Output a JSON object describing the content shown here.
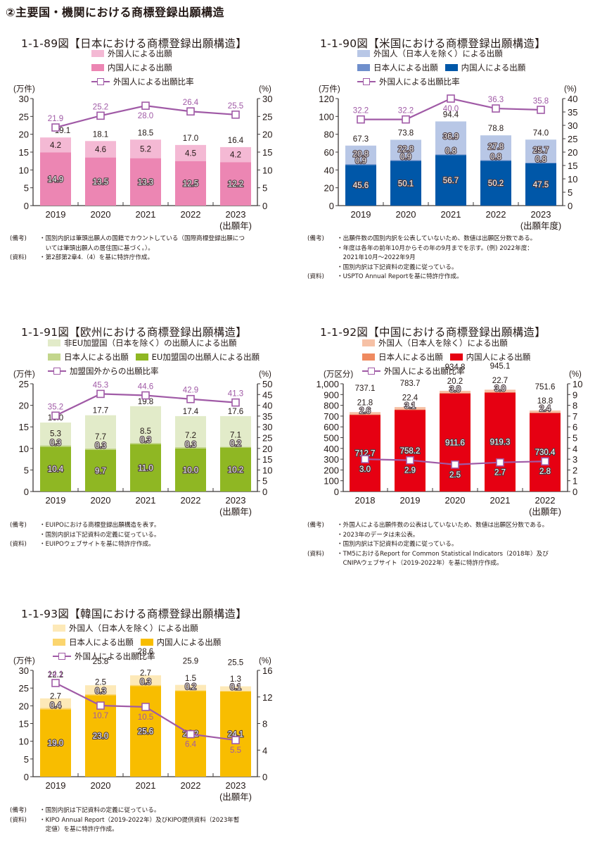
{
  "section_title": "②主要国・機関における商標登録出願構造",
  "chart_data": [
    {
      "id": "jp",
      "type": "bar",
      "stacked": true,
      "title": "1-1-89図【日本における商標登録出願構造】",
      "legend": [
        [
          {
            "kind": "bar",
            "label": "外国人による出願",
            "color": "#f4b9d4"
          }
        ],
        [
          {
            "kind": "bar",
            "label": "内国人による出願",
            "color": "#ec86b3"
          }
        ],
        [
          {
            "kind": "line",
            "label": "外国人による出願比率",
            "color": "#a05aa6"
          }
        ]
      ],
      "ylabel_left": "(万件)",
      "ylabel_right": "(%)",
      "xlabel": "(出願年)",
      "categories": [
        "2019",
        "2020",
        "2021",
        "2022",
        "2023"
      ],
      "ylim_left": [
        0,
        30
      ],
      "yticks_left": [
        0,
        5,
        10,
        15,
        20,
        25,
        30
      ],
      "ylim_right": [
        0,
        30
      ],
      "yticks_right": [
        0,
        5,
        10,
        15,
        20,
        25,
        30
      ],
      "series": [
        {
          "name": "内国人による出願",
          "color": "#ec86b3",
          "values": [
            14.9,
            13.5,
            13.3,
            12.5,
            12.2
          ],
          "labels": [
            "14.9",
            "13.5",
            "13.3",
            "12.5",
            "12.2"
          ],
          "label_style": "outline"
        },
        {
          "name": "外国人による出願",
          "color": "#f4b9d4",
          "values": [
            4.2,
            4.6,
            5.2,
            4.5,
            4.2
          ],
          "labels": [
            "4.2",
            "4.6",
            "5.2",
            "4.5",
            "4.2"
          ],
          "label_style": "plain"
        }
      ],
      "totals": [
        "19.1",
        "18.1",
        "18.5",
        "17.0",
        "16.4"
      ],
      "line": {
        "name": "外国人による出願比率",
        "color": "#a05aa6",
        "values": [
          21.9,
          25.2,
          28.0,
          26.4,
          25.5
        ],
        "labels": [
          "21.9",
          "25.2",
          "28.0",
          "26.4",
          "25.5"
        ],
        "label_pos": [
          "above",
          "above",
          "below",
          "above",
          "above"
        ]
      },
      "notes": [
        {
          "label": "(備考)",
          "lines": [
            "・国別内訳は筆頭出願人の国籍でカウントしている（国際商標登録出願につ",
            "　いては筆頭出願人の居住国に基づく。）。"
          ]
        },
        {
          "label": "(資料)",
          "lines": [
            "・第2部第2章4.（4）を基に特許庁作成。"
          ]
        }
      ]
    },
    {
      "id": "us",
      "type": "bar",
      "stacked": true,
      "title": "1-1-90図【米国における商標登録出願構造】",
      "legend": [
        [
          {
            "kind": "bar",
            "label": "外国人（日本人を除く）による出願",
            "color": "#b8c7e6"
          }
        ],
        [
          {
            "kind": "bar",
            "label": "日本人による出願",
            "color": "#6f8fcc"
          },
          {
            "kind": "bar",
            "label": "内国人による出願",
            "color": "#0057a8"
          }
        ],
        [
          {
            "kind": "line",
            "label": "外国人による出願比率",
            "color": "#a05aa6"
          }
        ]
      ],
      "ylabel_left": "(万件)",
      "ylabel_right": "(%)",
      "xlabel": "(出願年度)",
      "categories": [
        "2019",
        "2020",
        "2021",
        "2022",
        "2023"
      ],
      "ylim_left": [
        0,
        120
      ],
      "yticks_left": [
        0,
        20,
        40,
        60,
        80,
        100,
        120
      ],
      "ylim_right": [
        0,
        40
      ],
      "yticks_right": [
        0,
        5,
        10,
        15,
        20,
        25,
        30,
        35,
        40
      ],
      "series": [
        {
          "name": "内国人による出願",
          "color": "#0057a8",
          "values": [
            45.6,
            50.1,
            56.7,
            50.2,
            47.5
          ],
          "labels": [
            "45.6",
            "50.1",
            "56.7",
            "50.2",
            "47.5"
          ],
          "label_style": "outline"
        },
        {
          "name": "日本人による出願",
          "color": "#6f8fcc",
          "values": [
            0.9,
            0.9,
            0.8,
            0.8,
            0.8
          ],
          "labels": [
            "0.9",
            "0.9",
            "0.8",
            "0.8",
            "0.8"
          ],
          "label_style": "outline"
        },
        {
          "name": "外国人（日本人を除く）による出願",
          "color": "#b8c7e6",
          "values": [
            20.8,
            22.8,
            36.9,
            27.8,
            25.7
          ],
          "labels": [
            "20.8",
            "22.8",
            "36.9",
            "27.8",
            "25.7"
          ],
          "label_style": "outline"
        }
      ],
      "totals": [
        "67.3",
        "73.8",
        "94.4",
        "78.8",
        "74.0"
      ],
      "line": {
        "name": "外国人による出願比率",
        "color": "#a05aa6",
        "values": [
          32.2,
          32.2,
          40.0,
          36.3,
          35.8
        ],
        "labels": [
          "32.2",
          "32.2",
          "40.0",
          "36.3",
          "35.8"
        ],
        "label_pos": [
          "above",
          "above",
          "below",
          "above",
          "above"
        ]
      },
      "notes": [
        {
          "label": "(備考)",
          "lines": [
            "・出願件数の国別内訳を公表していないため、数値は出願区分数である。",
            "・年度は各年の前年10月からその年の9月までを示す。(例) 2022年度：",
            "　2021年10月～2022年9月",
            "・国別内訳は下記資料の定義に従っている。"
          ]
        },
        {
          "label": "(資料)",
          "lines": [
            "・USPTO Annual Reportを基に特許庁作成。"
          ]
        }
      ]
    },
    {
      "id": "eu",
      "type": "bar",
      "stacked": true,
      "title": "1-1-91図【欧州における商標登録出願構造】",
      "legend": [
        [
          {
            "kind": "bar",
            "label": "非EU加盟国（日本を除く）の出願人による出願",
            "color": "#e2ebc9"
          }
        ],
        [
          {
            "kind": "bar",
            "label": "日本人による出願",
            "color": "#c3d68c"
          },
          {
            "kind": "bar",
            "label": "EU加盟国の出願人による出願",
            "color": "#8fb723"
          }
        ],
        [
          {
            "kind": "line",
            "label": "加盟国外からの出願比率",
            "color": "#a05aa6"
          }
        ]
      ],
      "ylabel_left": "(万件)",
      "ylabel_right": "(%)",
      "xlabel": "(出願年)",
      "categories": [
        "2019",
        "2020",
        "2021",
        "2022",
        "2023"
      ],
      "ylim_left": [
        0,
        25
      ],
      "yticks_left": [
        0,
        5,
        10,
        15,
        20,
        25
      ],
      "ylim_right": [
        0,
        50
      ],
      "yticks_right": [
        0,
        5,
        10,
        15,
        20,
        25,
        30,
        35,
        40,
        45,
        50
      ],
      "series": [
        {
          "name": "EU加盟国の出願人による出願",
          "color": "#8fb723",
          "values": [
            10.4,
            9.7,
            11.0,
            10.0,
            10.2
          ],
          "labels": [
            "10.4",
            "9.7",
            "11.0",
            "10.0",
            "10.2"
          ],
          "label_style": "outline"
        },
        {
          "name": "日本人による出願",
          "color": "#c3d68c",
          "values": [
            0.3,
            0.3,
            0.3,
            0.3,
            0.2
          ],
          "labels": [
            "0.3",
            "0.3",
            "0.3",
            "0.3",
            "0.2"
          ],
          "label_style": "outline"
        },
        {
          "name": "非EU加盟国（日本を除く）の出願人による出願",
          "color": "#e2ebc9",
          "values": [
            5.3,
            7.7,
            8.5,
            7.2,
            7.1
          ],
          "labels": [
            "5.3",
            "7.7",
            "8.5",
            "7.2",
            "7.1"
          ],
          "label_style": "plain"
        }
      ],
      "totals": [
        "16.0",
        "17.7",
        "19.8",
        "17.4",
        "17.6"
      ],
      "line": {
        "name": "加盟国外からの出願比率",
        "color": "#a05aa6",
        "values": [
          35.2,
          45.3,
          44.6,
          42.9,
          41.3
        ],
        "labels": [
          "35.2",
          "45.3",
          "44.6",
          "42.9",
          "41.3"
        ],
        "label_pos": [
          "above",
          "above",
          "above",
          "above",
          "above"
        ]
      },
      "notes": [
        {
          "label": "(備考)",
          "lines": [
            "・EUIPOにおける商標登録出願構造を表す。",
            "・国別内訳は下記資料の定義に従っている。"
          ]
        },
        {
          "label": "(資料)",
          "lines": [
            "・EUIPOウェブサイトを基に特許庁作成。"
          ]
        }
      ]
    },
    {
      "id": "cn",
      "type": "bar",
      "stacked": true,
      "title": "1-1-92図【中国における商標登録出願構造】",
      "legend": [
        [
          {
            "kind": "bar",
            "label": "外国人（日本人を除く）による出願",
            "color": "#f6c1a6"
          }
        ],
        [
          {
            "kind": "bar",
            "label": "日本人による出願",
            "color": "#ef8a60"
          },
          {
            "kind": "bar",
            "label": "内国人による出願",
            "color": "#e60012"
          }
        ],
        [
          {
            "kind": "line",
            "label": "外国人による出願比率",
            "color": "#a05aa6"
          }
        ]
      ],
      "ylabel_left": "(万区分)",
      "ylabel_right": "(%)",
      "xlabel": "(出願年)",
      "categories": [
        "2018",
        "2019",
        "2020",
        "2021",
        "2022"
      ],
      "ylim_left": [
        0,
        1000
      ],
      "yticks_left": [
        0,
        100,
        200,
        300,
        400,
        500,
        600,
        700,
        800,
        900,
        1000
      ],
      "ytick_labels_left": [
        "0",
        "100",
        "200",
        "300",
        "400",
        "500",
        "600",
        "700",
        "800",
        "900",
        "1,000"
      ],
      "ylim_right": [
        0,
        10
      ],
      "yticks_right": [
        0,
        1,
        2,
        3,
        4,
        5,
        6,
        7,
        8,
        9,
        10
      ],
      "series": [
        {
          "name": "内国人による出願",
          "color": "#e60012",
          "values": [
            712.7,
            758.2,
            911.6,
            919.3,
            730.4
          ],
          "labels": [
            "712.7",
            "758.2",
            "911.6",
            "919.3",
            "730.4"
          ],
          "label_style": "outline"
        },
        {
          "name": "日本人による出願",
          "color": "#ef8a60",
          "values": [
            2.6,
            3.1,
            3.0,
            3.0,
            2.4
          ],
          "labels": [
            "2.6",
            "3.1",
            "3.0",
            "3.0",
            "2.4"
          ],
          "label_style": "outline"
        },
        {
          "name": "外国人（日本人を除く）による出願",
          "color": "#f6c1a6",
          "values": [
            21.8,
            22.4,
            20.2,
            22.7,
            18.8
          ],
          "labels": [
            "21.8",
            "22.4",
            "20.2",
            "22.7",
            "18.8"
          ],
          "label_style": "plain"
        }
      ],
      "totals": [
        "737.1",
        "783.7",
        "934.8",
        "945.1",
        "751.6"
      ],
      "line": {
        "name": "外国人による出願比率",
        "color": "#a05aa6",
        "values": [
          3.0,
          2.9,
          2.5,
          2.7,
          2.8
        ],
        "labels": [
          "3.0",
          "2.9",
          "2.5",
          "2.7",
          "2.8"
        ],
        "label_pos": [
          "below",
          "below",
          "below",
          "below",
          "below"
        ]
      },
      "notes": [
        {
          "label": "(備考)",
          "lines": [
            "・外国人による出願件数の公表はしていないため、数値は出願区分数である。",
            "・2023年のデータは未公表。",
            "・国別内訳は下記資料の定義に従っている。"
          ]
        },
        {
          "label": "(資料)",
          "lines": [
            "・TM5におけるReport for Common Statistical Indicators（2018年）及び",
            "　CNIPAウェブサイト（2019-2022年）を基に特許庁作成。"
          ]
        }
      ]
    },
    {
      "id": "kr",
      "type": "bar",
      "stacked": true,
      "title": "1-1-93図【韓国における商標登録出願構造】",
      "legend": [
        [
          {
            "kind": "bar",
            "label": "外国人（日本人を除く）による出願",
            "color": "#fde9b8"
          }
        ],
        [
          {
            "kind": "bar",
            "label": "日本人による出願",
            "color": "#fbd56e"
          },
          {
            "kind": "bar",
            "label": "内国人による出願",
            "color": "#f8bd00"
          }
        ],
        [
          {
            "kind": "line",
            "label": "外国人による出願比率",
            "color": "#a05aa6"
          }
        ]
      ],
      "ylabel_left": "(万件)",
      "ylabel_right": "(%)",
      "xlabel": "(出願年)",
      "categories": [
        "2019",
        "2020",
        "2021",
        "2022",
        "2023"
      ],
      "ylim_left": [
        0,
        30
      ],
      "yticks_left": [
        0,
        5,
        10,
        15,
        20,
        25,
        30
      ],
      "ylim_right": [
        0,
        16
      ],
      "yticks_right": [
        0,
        4,
        8,
        12,
        16
      ],
      "series": [
        {
          "name": "内国人による出願",
          "color": "#f8bd00",
          "values": [
            19.0,
            23.0,
            25.6,
            24.2,
            24.1
          ],
          "labels": [
            "19.0",
            "23.0",
            "25.6",
            "24.2",
            "24.1"
          ],
          "label_style": "outline"
        },
        {
          "name": "日本人による出願",
          "color": "#fbd56e",
          "values": [
            0.4,
            0.3,
            0.3,
            0.2,
            0.1
          ],
          "labels": [
            "0.4",
            "0.3",
            "0.3",
            "0.2",
            "0.1"
          ],
          "label_style": "outline"
        },
        {
          "name": "外国人（日本人を除く）による出願",
          "color": "#fde9b8",
          "values": [
            2.7,
            2.5,
            2.7,
            1.5,
            1.3
          ],
          "labels": [
            "2.7",
            "2.5",
            "2.7",
            "1.5",
            "1.3"
          ],
          "label_style": "plain"
        }
      ],
      "totals": [
        "22.2",
        "25.8",
        "28.6",
        "25.9",
        "25.5"
      ],
      "line": {
        "name": "外国人による出願比率",
        "color": "#a05aa6",
        "values": [
          14.1,
          10.7,
          10.5,
          6.4,
          5.5
        ],
        "labels": [
          "14.1",
          "10.7",
          "10.5",
          "6.4",
          "5.5"
        ],
        "label_pos": [
          "above",
          "below",
          "below",
          "below",
          "below"
        ]
      },
      "notes": [
        {
          "label": "(備考)",
          "lines": [
            "・国別内訳は下記資料の定義に従っている。"
          ]
        },
        {
          "label": "(資料)",
          "lines": [
            "・KIPO Annual Report（2019-2022年）及びKIPO提供資料（2023年暫",
            "　定値）を基に特許庁作成。"
          ]
        }
      ]
    }
  ]
}
